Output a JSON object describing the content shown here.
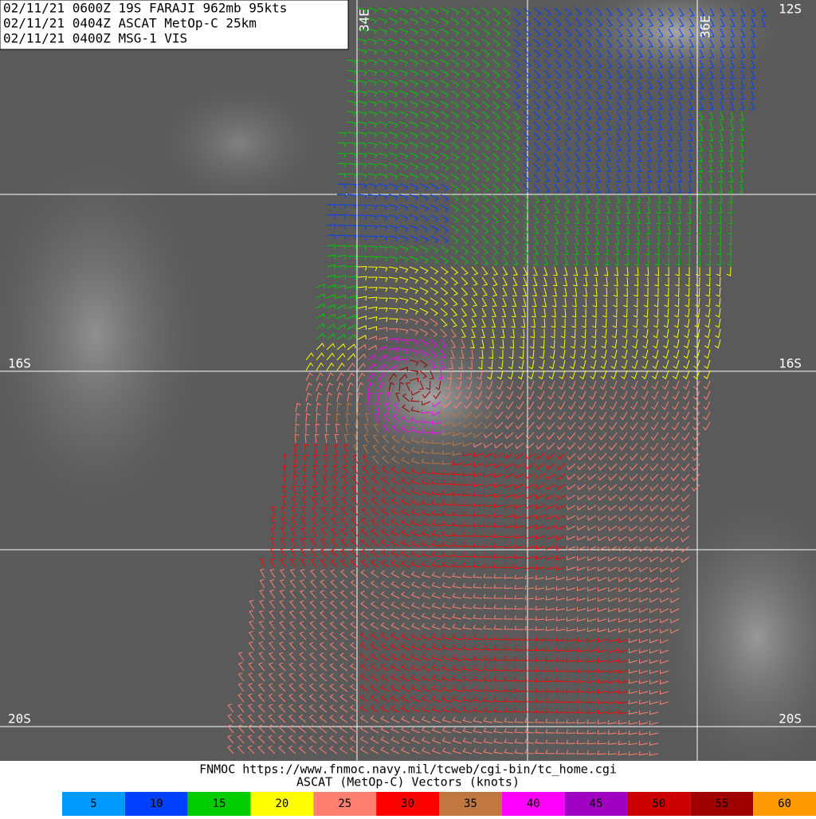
{
  "header": {
    "lines": [
      "02/11/21 0600Z  19S FARAJI 962mb 95kts",
      "02/11/21 0404Z  ASCAT MetOp-C 25km",
      "02/11/21 0400Z  MSG-1 VIS"
    ]
  },
  "grid": {
    "labels": [
      "12S",
      "16S",
      "16S",
      "20S",
      "20S",
      "34E",
      "36E"
    ]
  },
  "footer": {
    "source": "FNMOC https://www.fnmoc.navy.mil/tcweb/cgi-bin/tc_home.cgi",
    "caption": "ASCAT (MetOp-C) Vectors (knots)"
  },
  "legend": {
    "items": [
      {
        "value": 5,
        "color": "#0099ff"
      },
      {
        "value": 10,
        "color": "#0040ff"
      },
      {
        "value": 15,
        "color": "#00cc00"
      },
      {
        "value": 20,
        "color": "#ffff00"
      },
      {
        "value": 25,
        "color": "#ff8070"
      },
      {
        "value": 30,
        "color": "#ff0000"
      },
      {
        "value": 35,
        "color": "#c07840"
      },
      {
        "value": 40,
        "color": "#ff00ff"
      },
      {
        "value": 45,
        "color": "#a000c0"
      },
      {
        "value": 50,
        "color": "#cc0000"
      },
      {
        "value": 55,
        "color": "#a00000"
      },
      {
        "value": 60,
        "color": "#ff9900"
      }
    ]
  }
}
